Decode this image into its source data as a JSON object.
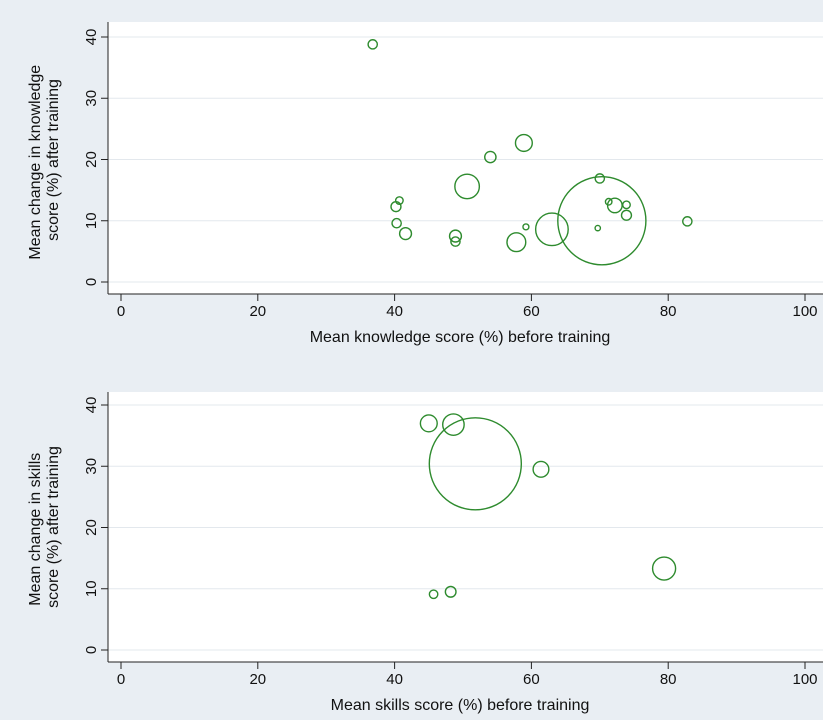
{
  "colors": {
    "background": "#e9eef3",
    "plot_background": "#ffffff",
    "marker": "#2e8b2e",
    "gridline": "#e3e8ed",
    "axis": "#222222"
  },
  "chart_data": [
    {
      "type": "scatter",
      "marker": "hollow-circle-weighted",
      "title": "",
      "xlabel": "Mean knowledge score (%) before training",
      "ylabel": [
        "Mean change in knowledge",
        "score (%) after training"
      ],
      "xlim": [
        0,
        100
      ],
      "ylim": [
        0,
        40
      ],
      "xticks": [
        "0",
        "20",
        "40",
        "60",
        "80",
        "100"
      ],
      "yticks": [
        "0",
        "10",
        "20",
        "30",
        "40"
      ],
      "grid": true,
      "legend": "none",
      "points": [
        {
          "x": 36.8,
          "y": 38.8,
          "weight": 1.2
        },
        {
          "x": 40.7,
          "y": 13.3,
          "weight": 0.8
        },
        {
          "x": 40.2,
          "y": 12.3,
          "weight": 1.4
        },
        {
          "x": 40.3,
          "y": 9.6,
          "weight": 1.2
        },
        {
          "x": 41.6,
          "y": 7.9,
          "weight": 2.0
        },
        {
          "x": 48.9,
          "y": 7.5,
          "weight": 2.0
        },
        {
          "x": 48.9,
          "y": 6.6,
          "weight": 1.2
        },
        {
          "x": 50.6,
          "y": 15.6,
          "weight": 8.5
        },
        {
          "x": 54.0,
          "y": 20.4,
          "weight": 1.8
        },
        {
          "x": 57.8,
          "y": 6.5,
          "weight": 5.0
        },
        {
          "x": 58.9,
          "y": 22.7,
          "weight": 4.0
        },
        {
          "x": 59.2,
          "y": 9.0,
          "weight": 0.5
        },
        {
          "x": 63.0,
          "y": 8.6,
          "weight": 15.0
        },
        {
          "x": 69.7,
          "y": 8.8,
          "weight": 0.4
        },
        {
          "x": 70.0,
          "y": 16.9,
          "weight": 1.2
        },
        {
          "x": 70.3,
          "y": 10.0,
          "weight": 110.0
        },
        {
          "x": 71.3,
          "y": 13.1,
          "weight": 0.6
        },
        {
          "x": 72.2,
          "y": 12.5,
          "weight": 3.0
        },
        {
          "x": 73.9,
          "y": 12.6,
          "weight": 0.8
        },
        {
          "x": 73.9,
          "y": 10.9,
          "weight": 1.4
        },
        {
          "x": 82.8,
          "y": 9.9,
          "weight": 1.2
        }
      ]
    },
    {
      "type": "scatter",
      "marker": "hollow-circle-weighted",
      "title": "",
      "xlabel": "Mean skills score (%) before training",
      "ylabel": [
        "Mean change in skills",
        "score (%) after training"
      ],
      "xlim": [
        0,
        100
      ],
      "ylim": [
        0,
        40
      ],
      "xticks": [
        "0",
        "20",
        "40",
        "60",
        "80",
        "100"
      ],
      "yticks": [
        "0",
        "10",
        "20",
        "30",
        "40"
      ],
      "grid": true,
      "legend": "none",
      "points": [
        {
          "x": 45.0,
          "y": 37.0,
          "weight": 4.0
        },
        {
          "x": 48.6,
          "y": 36.8,
          "weight": 6.5
        },
        {
          "x": 51.8,
          "y": 30.4,
          "weight": 120.0
        },
        {
          "x": 61.4,
          "y": 29.5,
          "weight": 3.5
        },
        {
          "x": 45.7,
          "y": 9.1,
          "weight": 1.0
        },
        {
          "x": 48.2,
          "y": 9.5,
          "weight": 1.6
        },
        {
          "x": 79.4,
          "y": 13.3,
          "weight": 7.5
        }
      ]
    }
  ]
}
